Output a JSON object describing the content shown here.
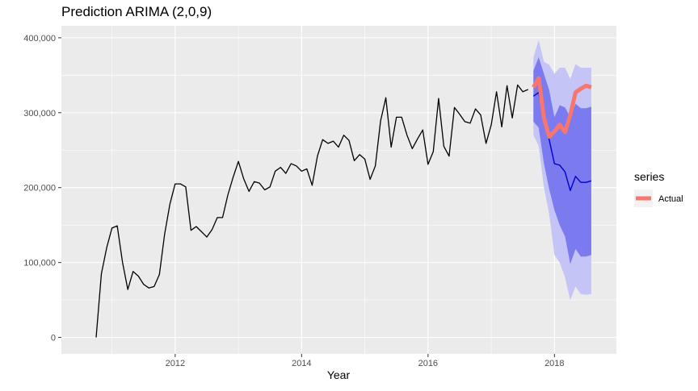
{
  "chart_data": {
    "type": "line",
    "title": "Prediction ARIMA (2,0,9)",
    "xlabel": "Year",
    "ylabel": "",
    "xlim": [
      2010.2,
      2018.98
    ],
    "ylim": [
      -22000,
      416000
    ],
    "x_ticks": [
      {
        "value": 2012,
        "label": "2012"
      },
      {
        "value": 2014,
        "label": "2014"
      },
      {
        "value": 2016,
        "label": "2016"
      },
      {
        "value": 2018,
        "label": "2018"
      }
    ],
    "y_ticks": [
      {
        "value": 0,
        "label": "0"
      },
      {
        "value": 100000,
        "label": "100,000"
      },
      {
        "value": 200000,
        "label": "200,000"
      },
      {
        "value": 300000,
        "label": "300,000"
      },
      {
        "value": 400000,
        "label": "400,000"
      }
    ],
    "grid": true,
    "legend": {
      "title": "series",
      "position": "right",
      "entries": [
        {
          "label": "Actual",
          "color": "#F8766D"
        }
      ]
    },
    "colors": {
      "history": "#000000",
      "actual": "#F8766D",
      "forecast": "#0000CC",
      "band80": "#7B7BEF",
      "band95": "#C4C4F6",
      "panel": "#EBEBEB",
      "grid": "#FFFFFF"
    },
    "series": [
      {
        "role": "history",
        "x": [
          2010.75,
          2010.833,
          2010.917,
          2011.0,
          2011.083,
          2011.167,
          2011.25,
          2011.333,
          2011.417,
          2011.5,
          2011.583,
          2011.667,
          2011.75,
          2011.833,
          2011.917,
          2012.0,
          2012.083,
          2012.167,
          2012.25,
          2012.333,
          2012.417,
          2012.5,
          2012.583,
          2012.667,
          2012.75,
          2012.833,
          2012.917,
          2013.0,
          2013.083,
          2013.167,
          2013.25,
          2013.333,
          2013.417,
          2013.5,
          2013.583,
          2013.667,
          2013.75,
          2013.833,
          2013.917,
          2014.0,
          2014.083,
          2014.167,
          2014.25,
          2014.333,
          2014.417,
          2014.5,
          2014.583,
          2014.667,
          2014.75,
          2014.833,
          2014.917,
          2015.0,
          2015.083,
          2015.167,
          2015.25,
          2015.333,
          2015.417,
          2015.5,
          2015.583,
          2015.667,
          2015.75,
          2015.833,
          2015.917,
          2016.0,
          2016.083,
          2016.167,
          2016.25,
          2016.333,
          2016.417,
          2016.5,
          2016.583,
          2016.667,
          2016.75,
          2016.833,
          2016.917,
          2017.0,
          2017.083,
          2017.167,
          2017.25,
          2017.333,
          2017.417,
          2017.5,
          2017.583
        ],
        "values": [
          0,
          85000,
          120000,
          146000,
          149000,
          100000,
          64000,
          88000,
          82000,
          71000,
          66000,
          68000,
          84000,
          138000,
          178000,
          205000,
          205000,
          201000,
          143000,
          148000,
          141000,
          134000,
          144000,
          160000,
          160000,
          190000,
          214000,
          235000,
          212000,
          195000,
          208000,
          206000,
          197000,
          201000,
          222000,
          227000,
          219000,
          232000,
          229000,
          222000,
          225000,
          203000,
          242000,
          264000,
          259000,
          262000,
          254000,
          270000,
          263000,
          236000,
          244000,
          238000,
          211000,
          229000,
          289000,
          320000,
          254000,
          294000,
          294000,
          270000,
          252000,
          265000,
          277000,
          231000,
          248000,
          319000,
          255000,
          242000,
          307000,
          298000,
          288000,
          286000,
          305000,
          297000,
          259000,
          284000,
          328000,
          281000,
          336000,
          293000,
          337000,
          328000,
          331000
        ]
      },
      {
        "role": "actual",
        "name": "Actual",
        "x": [
          2017.667,
          2017.75,
          2017.833,
          2017.917,
          2018.0,
          2018.083,
          2018.167,
          2018.25,
          2018.333,
          2018.417,
          2018.5,
          2018.583
        ],
        "values": [
          334000,
          346000,
          293000,
          268000,
          275000,
          284000,
          274000,
          297000,
          327000,
          332000,
          336000,
          334000
        ]
      },
      {
        "role": "forecast",
        "x": [
          2017.667,
          2017.75,
          2017.833,
          2017.917,
          2018.0,
          2018.083,
          2018.167,
          2018.25,
          2018.333,
          2018.417,
          2018.5,
          2018.583
        ],
        "values": [
          322000,
          327000,
          292000,
          264000,
          232000,
          230000,
          221000,
          196000,
          215000,
          207000,
          207000,
          209000
        ],
        "lo80": [
          288000,
          280000,
          232000,
          198000,
          170000,
          150000,
          135000,
          98000,
          118000,
          108000,
          108000,
          110000
        ],
        "hi80": [
          356000,
          374000,
          352000,
          330000,
          294000,
          310000,
          307000,
          294000,
          312000,
          306000,
          306000,
          308000
        ],
        "lo95": [
          270000,
          256000,
          200000,
          165000,
          110000,
          100000,
          80000,
          50000,
          68000,
          58000,
          57000,
          58000
        ],
        "hi95": [
          374000,
          397000,
          368000,
          364000,
          352000,
          360000,
          360000,
          345000,
          365000,
          360000,
          360000,
          360000
        ]
      }
    ]
  }
}
